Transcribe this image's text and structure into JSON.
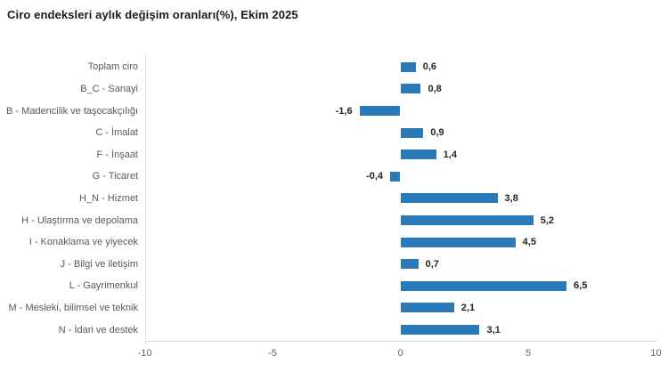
{
  "chart_data": {
    "type": "bar",
    "orientation": "horizontal",
    "title": "Ciro endeksleri aylık değişim oranları(%), Ekim 2025",
    "categories": [
      "Toplam ciro",
      "B_C - Sanayi",
      "B - Madencilik ve taşocakçılığı",
      "C - İmalat",
      "F - İnşaat",
      "G - Ticaret",
      "H_N - Hizmet",
      "H - Ulaştırma ve depolama",
      "I - Konaklama ve yiyecek",
      "J - Bilgi ve iletişim",
      "L - Gayrimenkul",
      "M - Mesleki, bilimsel ve teknik",
      "N - İdari ve destek"
    ],
    "values": [
      0.6,
      0.8,
      -1.6,
      0.9,
      1.4,
      -0.4,
      3.8,
      5.2,
      4.5,
      0.7,
      6.5,
      2.1,
      3.1
    ],
    "value_labels": [
      "0,6",
      "0,8",
      "-1,6",
      "0,9",
      "1,4",
      "-0,4",
      "3,8",
      "5,2",
      "4,5",
      "0,7",
      "6,5",
      "2,1",
      "3,1"
    ],
    "xlabel": "",
    "ylabel": "",
    "xlim": [
      -10,
      10
    ],
    "x_ticks": [
      -10,
      -5,
      0,
      5,
      10
    ],
    "x_tick_labels": [
      "-10",
      "-5",
      "0",
      "5",
      "10"
    ],
    "grid": false,
    "legend": false,
    "bar_color": "#2a7ab9",
    "axis_color": "#d9d9d9",
    "category_label_color": "#595959",
    "value_label_color": "#262626",
    "tick_label_color": "#666666"
  }
}
